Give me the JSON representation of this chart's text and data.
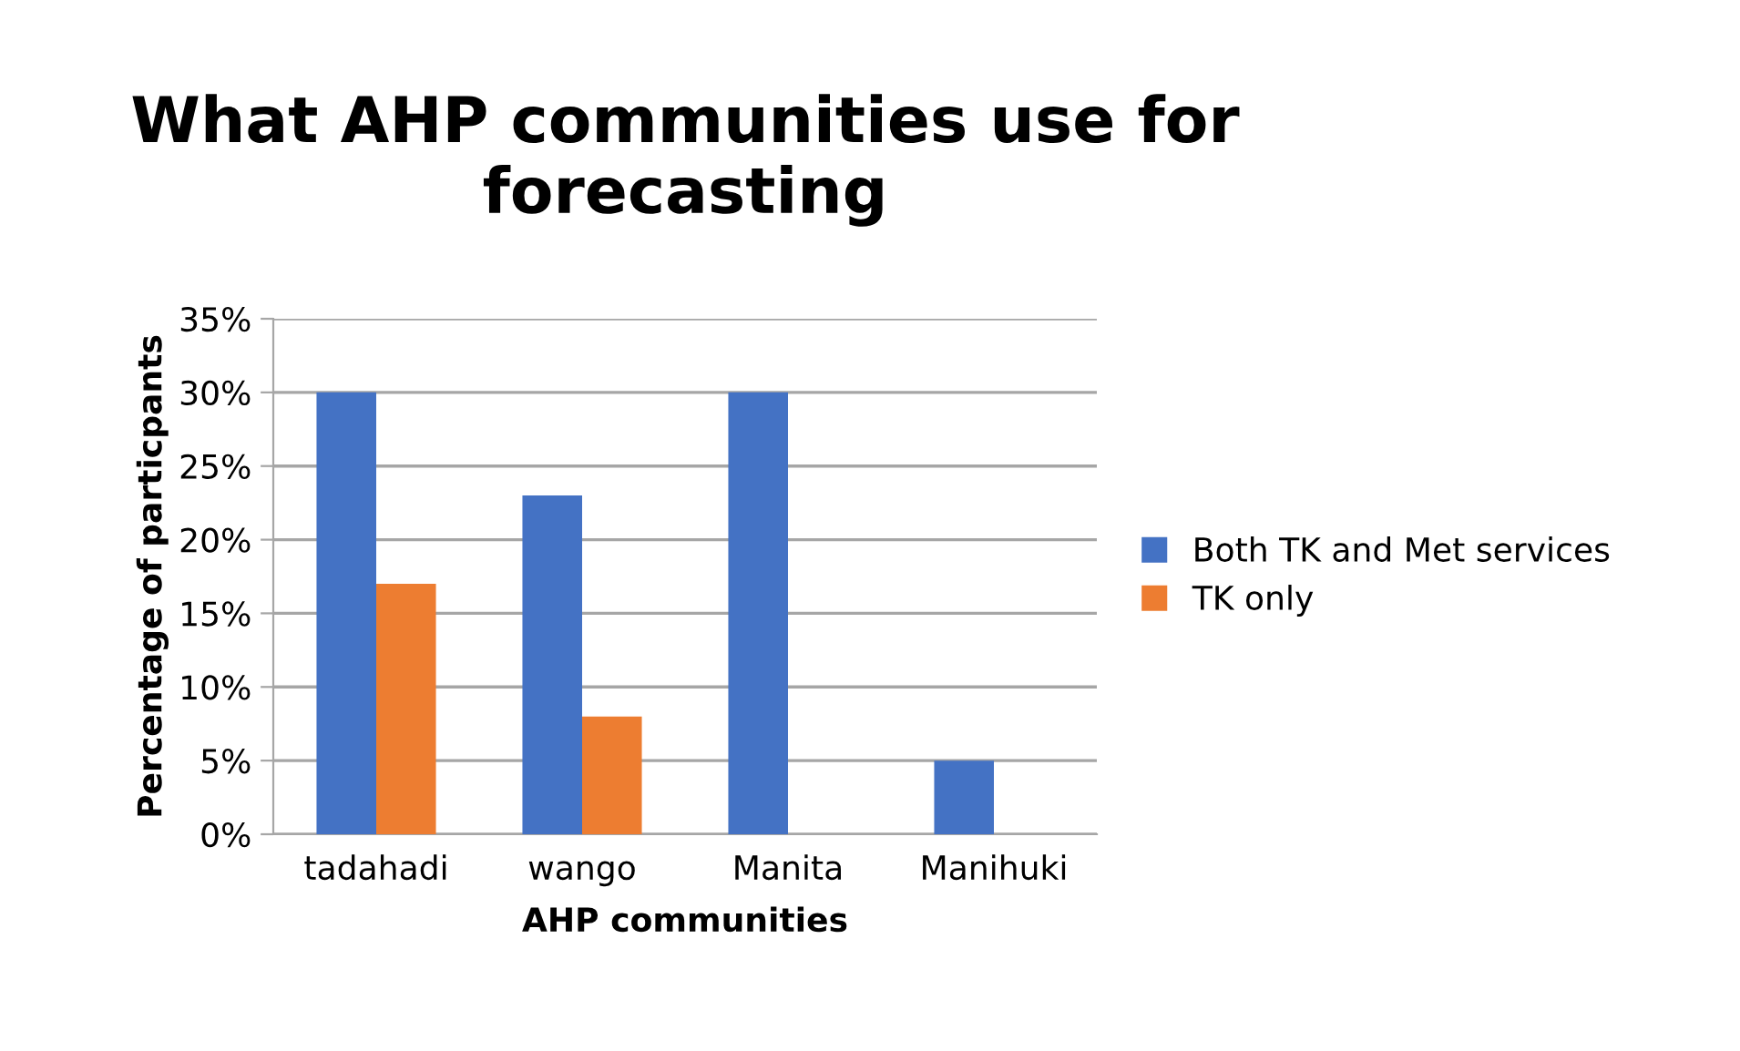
{
  "chart_data": {
    "type": "bar",
    "title": "What AHP communities use for forecasting",
    "xlabel": "AHP communities",
    "ylabel": "Percentage of particpants",
    "categories": [
      "tadahadi",
      "wango",
      "Manita",
      "Manihuki"
    ],
    "series": [
      {
        "name": "Both TK and Met services",
        "color": "#4472c4",
        "values": [
          30,
          23,
          30,
          5
        ]
      },
      {
        "name": "TK only",
        "color": "#ed7d31",
        "values": [
          17,
          8,
          0,
          0
        ]
      }
    ],
    "ylim": [
      0,
      35
    ],
    "yticks": [
      {
        "value": 0,
        "label": "0%"
      },
      {
        "value": 5,
        "label": "5%"
      },
      {
        "value": 10,
        "label": "10%"
      },
      {
        "value": 15,
        "label": "15%"
      },
      {
        "value": 20,
        "label": "20%"
      },
      {
        "value": 25,
        "label": "25%"
      },
      {
        "value": 30,
        "label": "30%"
      },
      {
        "value": 35,
        "label": "35%"
      }
    ],
    "grid": "y",
    "legend": "right"
  }
}
